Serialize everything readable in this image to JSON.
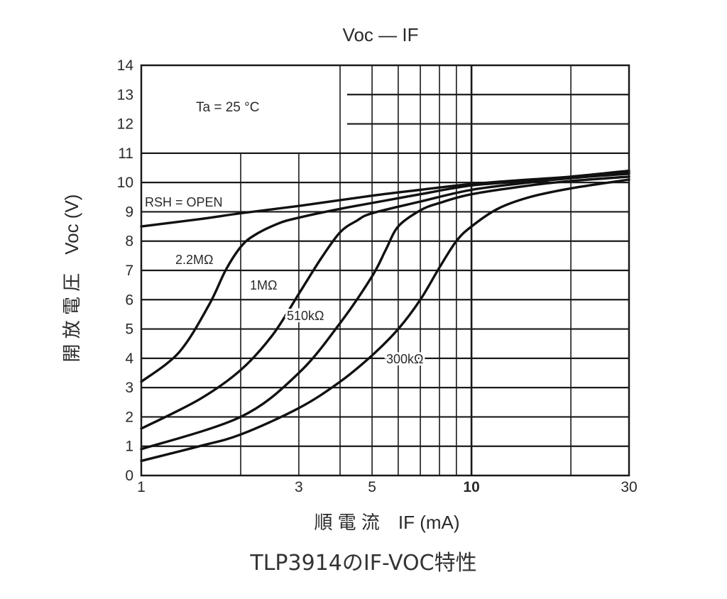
{
  "chart_data": {
    "type": "line",
    "title": "Voc — IF",
    "xlabel": "順 電 流　IF (mA)",
    "ylabel": "開 放 電 圧　Voc (V)",
    "x_scale": "log",
    "xlim": [
      1,
      30
    ],
    "ylim": [
      0,
      14
    ],
    "x_ticks": [
      1,
      3,
      5,
      10,
      30
    ],
    "x_tick_labels": [
      "1",
      "3",
      "5",
      "10",
      "30"
    ],
    "y_ticks": [
      0,
      1,
      2,
      3,
      4,
      5,
      6,
      7,
      8,
      9,
      10,
      11,
      12,
      13,
      14
    ],
    "grid": true,
    "annotation": "Ta = 25 °C",
    "series": [
      {
        "name": "RSH = OPEN",
        "x": [
          1,
          1.5,
          2,
          3,
          5,
          7,
          10,
          15,
          20,
          30
        ],
        "y": [
          8.5,
          8.75,
          8.95,
          9.2,
          9.55,
          9.75,
          9.95,
          10.1,
          10.2,
          10.4
        ]
      },
      {
        "name": "2.2MΩ",
        "x": [
          1,
          1.3,
          1.6,
          1.8,
          2,
          2.2,
          2.6,
          3,
          4,
          5,
          7,
          10,
          15,
          20,
          30
        ],
        "y": [
          3.2,
          4.2,
          5.8,
          7.0,
          7.8,
          8.2,
          8.6,
          8.8,
          9.1,
          9.3,
          9.6,
          9.9,
          10.05,
          10.15,
          10.35
        ]
      },
      {
        "name": "1MΩ",
        "x": [
          1,
          1.5,
          2,
          2.5,
          3,
          3.5,
          4,
          4.5,
          5,
          7,
          10,
          15,
          20,
          30
        ],
        "y": [
          1.6,
          2.6,
          3.6,
          4.8,
          6.2,
          7.4,
          8.3,
          8.7,
          8.95,
          9.35,
          9.75,
          10.0,
          10.15,
          10.3
        ]
      },
      {
        "name": "510kΩ",
        "x": [
          1,
          2,
          3,
          4,
          5,
          5.5,
          6,
          7,
          8,
          10,
          15,
          20,
          30
        ],
        "y": [
          0.9,
          2.0,
          3.5,
          5.2,
          6.8,
          7.7,
          8.5,
          9.05,
          9.3,
          9.6,
          9.9,
          10.05,
          10.2
        ]
      },
      {
        "name": "300kΩ",
        "x": [
          1,
          1.5,
          2,
          3,
          4,
          5,
          6,
          7,
          8,
          9,
          10,
          12,
          15,
          20,
          30
        ],
        "y": [
          0.5,
          1.0,
          1.4,
          2.3,
          3.2,
          4.1,
          5.0,
          6.0,
          7.1,
          8.0,
          8.5,
          9.1,
          9.5,
          9.8,
          10.1
        ]
      }
    ]
  },
  "caption": "TLP3914のIF-VOC特性"
}
